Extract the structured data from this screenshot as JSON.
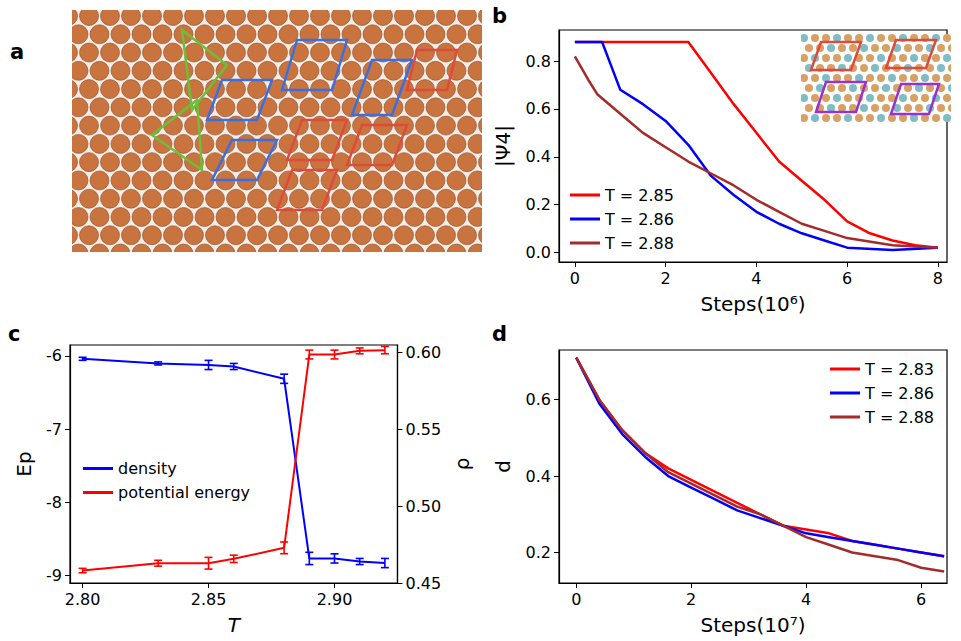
{
  "chart_data": [
    {
      "panel": "a",
      "type": "image"
    },
    {
      "panel": "b",
      "type": "line",
      "x_label": "Steps(10⁶)",
      "y_label": "|Ψ4|",
      "xlim": [
        -0.35,
        8.2
      ],
      "xticks": [
        0,
        2,
        4,
        6,
        8
      ],
      "ylim": [
        -0.04,
        0.93
      ],
      "yticks": [
        {
          "value": 0,
          "label": "0.0"
        },
        0.2,
        0.4,
        0.6,
        0.8
      ],
      "legend": "lower left",
      "series": [
        {
          "name": "T = 2.85",
          "color": "#ff0000",
          "x": [
            0,
            0.5,
            1,
            1.5,
            2,
            2.5,
            3,
            3.5,
            4,
            4.5,
            5,
            5.5,
            6,
            6.5,
            7,
            7.5,
            8
          ],
          "values": [
            0.88,
            0.88,
            0.88,
            0.88,
            0.88,
            0.88,
            0.75,
            0.62,
            0.5,
            0.38,
            0.3,
            0.22,
            0.13,
            0.08,
            0.05,
            0.03,
            0.02
          ]
        },
        {
          "name": "T = 2.86",
          "color": "#0000ff",
          "x": [
            0,
            0.3,
            0.6,
            0.8,
            1,
            1.5,
            2,
            2.5,
            3,
            3.5,
            4,
            4.5,
            5,
            5.5,
            6,
            7,
            8
          ],
          "values": [
            0.88,
            0.88,
            0.88,
            0.78,
            0.68,
            0.62,
            0.55,
            0.45,
            0.32,
            0.24,
            0.17,
            0.12,
            0.08,
            0.05,
            0.02,
            0.01,
            0.02
          ]
        },
        {
          "name": "T = 2.88",
          "color": "#a52a2a",
          "x": [
            0,
            0.3,
            0.5,
            1,
            1.5,
            2,
            2.5,
            3,
            3.5,
            4,
            4.5,
            5,
            5.5,
            6,
            7,
            8
          ],
          "values": [
            0.82,
            0.72,
            0.66,
            0.58,
            0.5,
            0.44,
            0.38,
            0.33,
            0.28,
            0.22,
            0.17,
            0.12,
            0.09,
            0.06,
            0.03,
            0.02
          ]
        }
      ]
    },
    {
      "panel": "c",
      "type": "line",
      "x_label": "T",
      "y_label": "Ep",
      "y2_label": "ρ",
      "xlim": [
        2.795,
        2.925
      ],
      "xticks": [
        {
          "value": 2.8,
          "label": "2.80"
        },
        2.85,
        {
          "value": 2.9,
          "label": "2.90"
        }
      ],
      "ylim": [
        -9.1,
        -5.85
      ],
      "yticks": [
        -9,
        -8,
        -7,
        -6
      ],
      "y2lim": [
        0.45,
        0.605
      ],
      "y2ticks": [
        0.45,
        {
          "value": 0.5,
          "label": "0.50"
        },
        0.55,
        {
          "value": 0.6,
          "label": "0.60"
        }
      ],
      "legend": "center left",
      "x": [
        2.8,
        2.83,
        2.85,
        2.86,
        2.88,
        2.89,
        2.9,
        2.91,
        2.92
      ],
      "series": [
        {
          "name": "density",
          "color": "#0000ff",
          "axis": "y2",
          "values": [
            0.596,
            0.593,
            0.592,
            0.591,
            0.583,
            0.466,
            0.466,
            0.464,
            0.463
          ],
          "errors": [
            0.001,
            0.001,
            0.003,
            0.002,
            0.003,
            0.004,
            0.003,
            0.002,
            0.003
          ]
        },
        {
          "name": "potential energy",
          "color": "#ff0000",
          "values": [
            -8.93,
            -8.83,
            -8.83,
            -8.77,
            -8.62,
            -5.98,
            -5.98,
            -5.93,
            -5.92
          ],
          "errors": [
            0.03,
            0.04,
            0.08,
            0.05,
            0.08,
            0.06,
            0.06,
            0.04,
            0.05
          ]
        }
      ]
    },
    {
      "panel": "d",
      "type": "line",
      "x_label": "Steps(10⁷)",
      "y_label": "d",
      "xlim": [
        -0.3,
        6.45
      ],
      "xticks": [
        0,
        2,
        4,
        6
      ],
      "ylim": [
        0.12,
        0.73
      ],
      "yticks": [
        0.2,
        0.4,
        0.6
      ],
      "legend": "upper right",
      "series": [
        {
          "name": "T = 2.83",
          "color": "#ff0000",
          "x": [
            0,
            0.4,
            0.8,
            1.2,
            1.6,
            2,
            2.4,
            2.8,
            3.2,
            3.6,
            4,
            4.4,
            4.8,
            5.2,
            5.6,
            6,
            6.4
          ],
          "values": [
            0.71,
            0.6,
            0.52,
            0.46,
            0.42,
            0.39,
            0.36,
            0.33,
            0.3,
            0.27,
            0.26,
            0.25,
            0.23,
            0.22,
            0.21,
            0.2,
            0.19
          ]
        },
        {
          "name": "T = 2.86",
          "color": "#0000ff",
          "x": [
            0,
            0.4,
            0.8,
            1.2,
            1.6,
            2,
            2.4,
            2.8,
            3.2,
            3.6,
            4,
            4.4,
            4.8,
            5.2,
            5.6,
            6,
            6.4
          ],
          "values": [
            0.71,
            0.59,
            0.51,
            0.45,
            0.4,
            0.37,
            0.34,
            0.31,
            0.29,
            0.27,
            0.25,
            0.24,
            0.23,
            0.22,
            0.21,
            0.2,
            0.19
          ]
        },
        {
          "name": "T = 2.88",
          "color": "#a52a2a",
          "x": [
            0,
            0.4,
            0.8,
            1.2,
            1.6,
            2,
            2.4,
            2.8,
            3.2,
            3.6,
            4,
            4.4,
            4.8,
            5.2,
            5.6,
            6,
            6.4
          ],
          "values": [
            0.71,
            0.6,
            0.52,
            0.46,
            0.41,
            0.38,
            0.35,
            0.32,
            0.3,
            0.27,
            0.24,
            0.22,
            0.2,
            0.19,
            0.18,
            0.16,
            0.15
          ]
        }
      ]
    }
  ]
}
